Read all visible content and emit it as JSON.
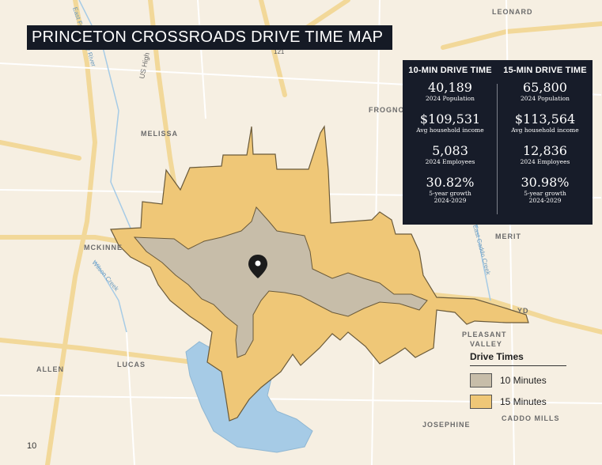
{
  "title": "PRINCETON CROSSROADS DRIVE TIME MAP",
  "colors": {
    "ten_min": "#c7bda9",
    "fifteen_min": "#efc777",
    "water": "#a6cbe6",
    "panel": "#171c29",
    "land": "#f6efe2",
    "road": "#f2d899"
  },
  "stats": {
    "ten": {
      "header": "10-MIN DRIVE TIME",
      "items": [
        {
          "value": "40,189",
          "label": "2024 Population"
        },
        {
          "value": "$109,531",
          "label": "Avg household income"
        },
        {
          "value": "5,083",
          "label": "2024 Employees"
        },
        {
          "value": "30.82%",
          "label": "5-year growth",
          "sub": "2024-2029"
        }
      ]
    },
    "fifteen": {
      "header": "15-MIN DRIVE TIME",
      "items": [
        {
          "value": "65,800",
          "label": "2024 Population"
        },
        {
          "value": "$113,564",
          "label": "Avg household income"
        },
        {
          "value": "12,836",
          "label": "2024 Employees"
        },
        {
          "value": "30.98%",
          "label": "5-year growth",
          "sub": "2024-2029"
        }
      ]
    }
  },
  "legend": {
    "title": "Drive Times",
    "items": [
      {
        "label": "10 Minutes",
        "color": "#c7bda9"
      },
      {
        "label": "15 Minutes",
        "color": "#efc777"
      }
    ]
  },
  "places": {
    "leonard": "LEONARD",
    "melissa": "MELISSA",
    "frognot": "FROGNO",
    "mckinney": "MCKINNE",
    "merit": "MERIT",
    "pleasant1": "PLEASANT",
    "pleasant2": "VALLEY",
    "allen": "ALLEN",
    "lucas": "LUCAS",
    "josephine": "JOSEPHINE",
    "caddo_mills": "CADDO MILLS",
    "rd": "YD"
  },
  "road_labels": {
    "us_hwy": "US High",
    "east_fork": "East Fork Trinity River",
    "wilson": "Wilson Creek",
    "caddo_creek": "East Caddo Creek",
    "hwy121": "121"
  },
  "page_number": "10"
}
